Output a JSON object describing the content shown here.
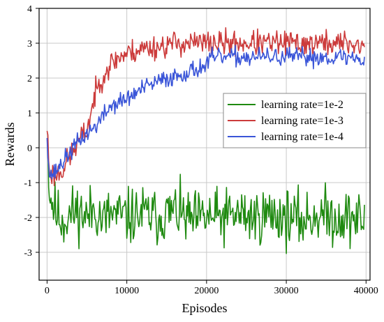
{
  "chart_data": {
    "type": "line",
    "title": "",
    "xlabel": "Episodes",
    "ylabel": "Rewards",
    "xlim": [
      -1000,
      40500
    ],
    "ylim": [
      -3.8,
      4
    ],
    "xticks": [
      0,
      10000,
      20000,
      30000,
      40000
    ],
    "yticks": [
      -3,
      -2,
      -1,
      0,
      1,
      2,
      3,
      4
    ],
    "grid": true,
    "legend_position": "right",
    "series": [
      {
        "name": "learning rate=1e-2",
        "color": "#1f8a10",
        "points": [
          [
            0,
            0.6
          ],
          [
            300,
            -1.3
          ],
          [
            700,
            -1.6
          ],
          [
            1200,
            -1.9
          ],
          [
            2000,
            -2.1
          ],
          [
            3000,
            -1.9
          ],
          [
            4000,
            -1.8
          ],
          [
            5000,
            -2.0
          ],
          [
            6000,
            -1.7
          ],
          [
            7000,
            -2.1
          ],
          [
            8000,
            -1.9
          ],
          [
            10000,
            -2.0
          ],
          [
            12000,
            -1.9
          ],
          [
            14000,
            -2.0
          ],
          [
            16000,
            -1.8
          ],
          [
            18000,
            -2.1
          ],
          [
            20000,
            -2.0
          ],
          [
            22000,
            -2.0
          ],
          [
            24000,
            -1.9
          ],
          [
            26000,
            -2.0
          ],
          [
            28000,
            -1.9
          ],
          [
            30000,
            -2.0
          ],
          [
            32000,
            -2.1
          ],
          [
            34000,
            -1.9
          ],
          [
            36000,
            -2.0
          ],
          [
            38000,
            -2.0
          ],
          [
            39800,
            -2.1
          ]
        ],
        "noise": 0.4,
        "seed": 11
      },
      {
        "name": "learning rate=1e-3",
        "color": "#cc3b3b",
        "points": [
          [
            0,
            0.6
          ],
          [
            300,
            -0.7
          ],
          [
            1000,
            -0.8
          ],
          [
            2000,
            -0.6
          ],
          [
            3000,
            -0.2
          ],
          [
            4000,
            0.2
          ],
          [
            5000,
            0.5
          ],
          [
            6000,
            1.5
          ],
          [
            7000,
            2.1
          ],
          [
            8000,
            2.4
          ],
          [
            9000,
            2.6
          ],
          [
            10000,
            2.7
          ],
          [
            12000,
            2.85
          ],
          [
            14000,
            2.9
          ],
          [
            16000,
            3.0
          ],
          [
            18000,
            3.0
          ],
          [
            20000,
            3.0
          ],
          [
            22000,
            3.0
          ],
          [
            24000,
            3.0
          ],
          [
            26000,
            3.0
          ],
          [
            28000,
            3.0
          ],
          [
            30000,
            3.0
          ],
          [
            32000,
            3.0
          ],
          [
            34000,
            3.0
          ],
          [
            36000,
            3.0
          ],
          [
            38000,
            3.0
          ],
          [
            39800,
            2.9
          ]
        ],
        "noise": 0.18,
        "seed": 23
      },
      {
        "name": "learning rate=1e-4",
        "color": "#3a55d8",
        "points": [
          [
            0,
            0.4
          ],
          [
            300,
            -0.8
          ],
          [
            1000,
            -0.7
          ],
          [
            2000,
            -0.4
          ],
          [
            3000,
            -0.1
          ],
          [
            4000,
            0.2
          ],
          [
            5000,
            0.4
          ],
          [
            6000,
            0.6
          ],
          [
            7000,
            0.9
          ],
          [
            8000,
            1.2
          ],
          [
            10000,
            1.4
          ],
          [
            12000,
            1.7
          ],
          [
            14000,
            1.9
          ],
          [
            16000,
            2.05
          ],
          [
            18000,
            2.2
          ],
          [
            19800,
            2.35
          ],
          [
            20500,
            2.55
          ],
          [
            22000,
            2.6
          ],
          [
            24000,
            2.6
          ],
          [
            26000,
            2.6
          ],
          [
            28000,
            2.6
          ],
          [
            30000,
            2.6
          ],
          [
            32000,
            2.6
          ],
          [
            34000,
            2.6
          ],
          [
            36000,
            2.6
          ],
          [
            38000,
            2.6
          ],
          [
            39800,
            2.5
          ]
        ],
        "noise": 0.13,
        "seed": 37
      }
    ]
  }
}
